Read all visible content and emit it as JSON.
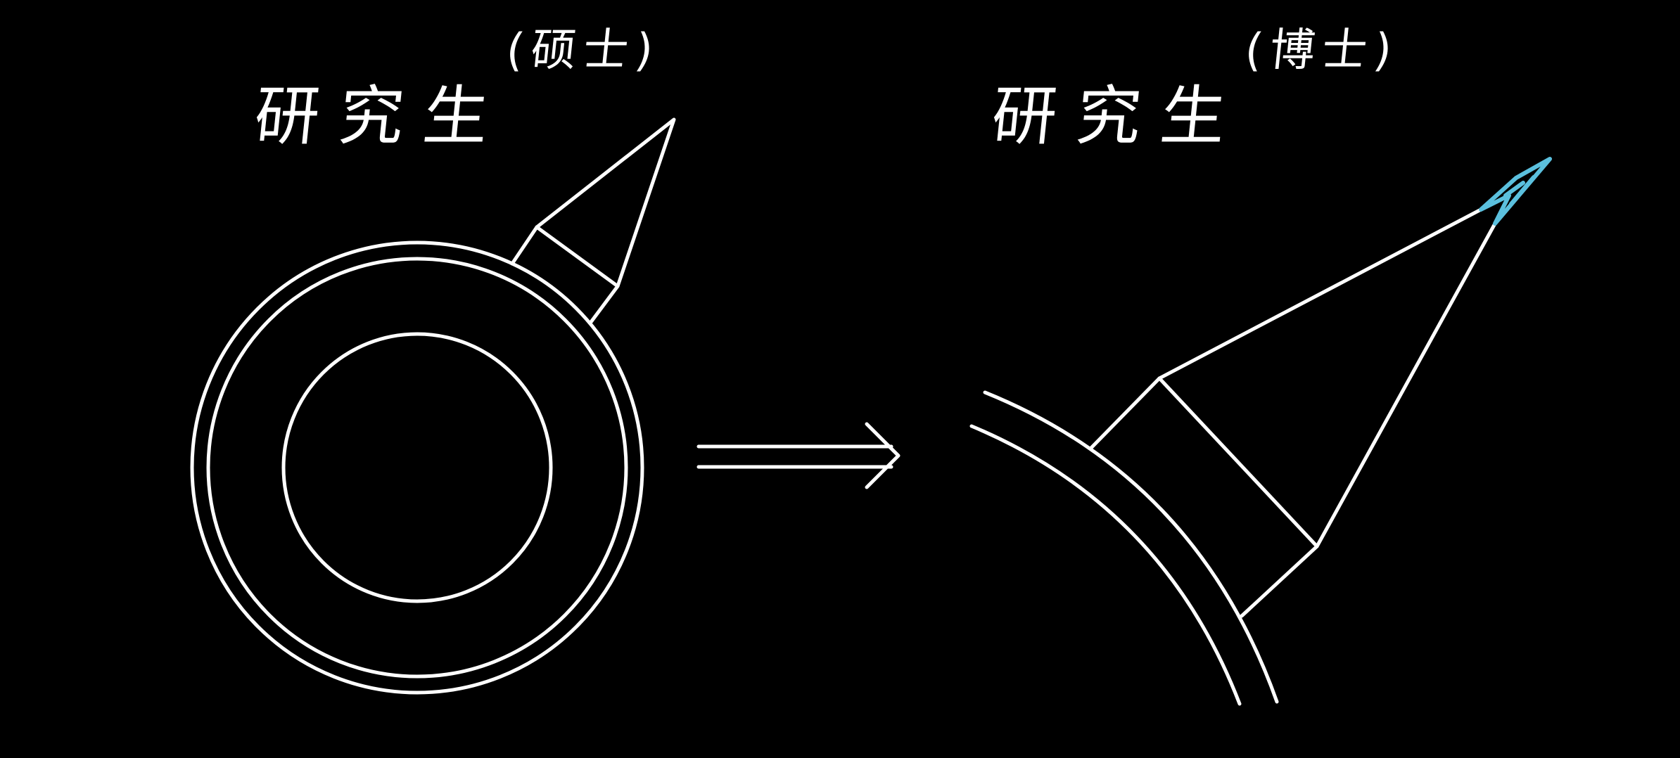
{
  "left_figure": {
    "title": "研究生",
    "subtitle": "(硕士)"
  },
  "right_figure": {
    "title": "研究生",
    "subtitle": "(博士)"
  },
  "colors": {
    "background": "#000000",
    "stroke": "#ffffff",
    "highlight": "#5bc0de"
  }
}
